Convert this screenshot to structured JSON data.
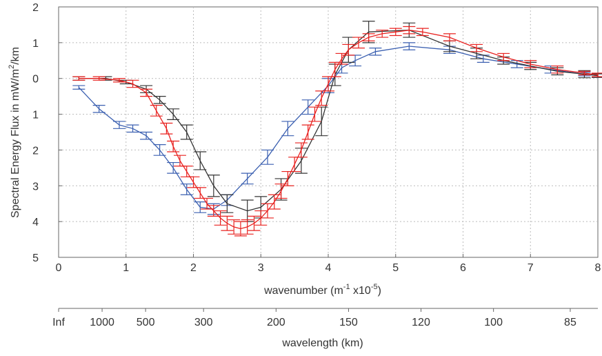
{
  "chart_data": {
    "type": "line",
    "xlabel_parts": [
      "wavenumber (m",
      "-1",
      " x10",
      "-5",
      ")"
    ],
    "ylabel_parts": [
      "Spectral Energy Flux in mW/m",
      "2",
      "/km"
    ],
    "secondary_xlabel": "wavelength (km)",
    "xlim": [
      0,
      8
    ],
    "ylim_display": [
      5,
      2
    ],
    "x_ticks": [
      0,
      1,
      2,
      3,
      4,
      5,
      6,
      7,
      8
    ],
    "x_tick_labels": [
      "0",
      "1",
      "2",
      "3",
      "4",
      "5",
      "6",
      "7",
      "8"
    ],
    "y_ticks": [
      2,
      1,
      0,
      -1,
      -2,
      -3,
      -4,
      -5
    ],
    "y_tick_labels": [
      "2",
      "1",
      "0",
      "1",
      "2",
      "3",
      "4",
      "5"
    ],
    "secondary_ticks": [
      {
        "k": 0,
        "label": "Inf"
      },
      {
        "k": 1.0,
        "label": "1000"
      },
      {
        "k": 2.0,
        "label": "500"
      },
      {
        "k": 3.333,
        "label": "300"
      },
      {
        "k": 5.0,
        "label": "200"
      },
      {
        "k": 6.667,
        "label": "150"
      },
      {
        "k": 8.333,
        "label": "120"
      },
      {
        "k": 10.0,
        "label": "100"
      },
      {
        "k": 11.765,
        "label": "85"
      }
    ],
    "grid": true,
    "series": [
      {
        "color": "#3a5fb0",
        "x": [
          0.3,
          0.6,
          0.9,
          1.1,
          1.3,
          1.5,
          1.7,
          1.9,
          2.1,
          2.3,
          2.5,
          2.8,
          3.1,
          3.4,
          3.7,
          4.0,
          4.2,
          4.4,
          4.7,
          5.2,
          5.8,
          6.3,
          6.8,
          7.3,
          7.8,
          8.0
        ],
        "y": [
          -0.25,
          -0.85,
          -1.3,
          -1.4,
          -1.6,
          -2.0,
          -2.5,
          -3.1,
          -3.6,
          -3.65,
          -3.4,
          -2.8,
          -2.2,
          -1.4,
          -0.8,
          -0.2,
          0.3,
          0.5,
          0.75,
          0.9,
          0.8,
          0.55,
          0.4,
          0.25,
          0.12,
          0.08
        ],
        "err": [
          0.05,
          0.1,
          0.1,
          0.1,
          0.1,
          0.15,
          0.15,
          0.15,
          0.15,
          0.15,
          0.15,
          0.15,
          0.2,
          0.2,
          0.2,
          0.2,
          0.15,
          0.15,
          0.1,
          0.1,
          0.1,
          0.1,
          0.1,
          0.1,
          0.05,
          0.05
        ]
      },
      {
        "color": "#333333",
        "x": [
          0.3,
          0.7,
          1.0,
          1.3,
          1.5,
          1.7,
          1.9,
          2.1,
          2.3,
          2.5,
          2.8,
          3.0,
          3.3,
          3.6,
          3.9,
          4.1,
          4.3,
          4.6,
          5.2,
          5.8,
          6.2,
          6.6,
          7.0,
          7.4,
          7.8,
          8.0
        ],
        "y": [
          0.0,
          0.0,
          -0.1,
          -0.3,
          -0.6,
          -1.0,
          -1.5,
          -2.3,
          -3.0,
          -3.5,
          -3.7,
          -3.6,
          -3.1,
          -2.3,
          -1.2,
          0.1,
          0.8,
          1.3,
          1.35,
          0.9,
          0.7,
          0.5,
          0.35,
          0.2,
          0.12,
          0.08
        ],
        "err": [
          0.05,
          0.05,
          0.05,
          0.1,
          0.1,
          0.15,
          0.2,
          0.25,
          0.3,
          0.25,
          0.3,
          0.3,
          0.3,
          0.35,
          0.4,
          0.3,
          0.35,
          0.3,
          0.2,
          0.15,
          0.15,
          0.1,
          0.1,
          0.1,
          0.1,
          0.05
        ]
      },
      {
        "color": "#e8201e",
        "x": [
          0.3,
          0.6,
          0.9,
          1.1,
          1.3,
          1.45,
          1.6,
          1.7,
          1.8,
          1.9,
          2.0,
          2.1,
          2.2,
          2.3,
          2.4,
          2.5,
          2.6,
          2.7,
          2.8,
          2.9,
          3.0,
          3.1,
          3.2,
          3.3,
          3.4,
          3.5,
          3.6,
          3.7,
          3.8,
          3.9,
          4.0,
          4.1,
          4.2,
          4.3,
          4.45,
          4.6,
          4.8,
          5.0,
          5.2,
          5.4,
          5.8,
          6.2,
          6.6,
          7.0,
          7.4,
          7.8,
          8.0
        ],
        "y": [
          0.0,
          0.0,
          -0.05,
          -0.15,
          -0.4,
          -0.9,
          -1.4,
          -1.9,
          -2.3,
          -2.6,
          -2.9,
          -3.2,
          -3.5,
          -3.7,
          -3.9,
          -4.05,
          -4.15,
          -4.2,
          -4.15,
          -4.05,
          -3.9,
          -3.7,
          -3.45,
          -3.15,
          -2.8,
          -2.4,
          -2.0,
          -1.5,
          -1.0,
          -0.55,
          -0.15,
          0.25,
          0.55,
          0.8,
          1.0,
          1.15,
          1.25,
          1.3,
          1.35,
          1.3,
          1.15,
          0.85,
          0.6,
          0.4,
          0.25,
          0.15,
          0.1
        ],
        "err": [
          0.05,
          0.05,
          0.05,
          0.1,
          0.1,
          0.15,
          0.15,
          0.15,
          0.15,
          0.15,
          0.15,
          0.15,
          0.15,
          0.15,
          0.2,
          0.2,
          0.2,
          0.2,
          0.2,
          0.2,
          0.2,
          0.2,
          0.2,
          0.2,
          0.2,
          0.2,
          0.2,
          0.2,
          0.2,
          0.2,
          0.2,
          0.2,
          0.15,
          0.15,
          0.15,
          0.1,
          0.1,
          0.1,
          0.1,
          0.1,
          0.1,
          0.1,
          0.1,
          0.1,
          0.1,
          0.05,
          0.05
        ]
      }
    ]
  }
}
